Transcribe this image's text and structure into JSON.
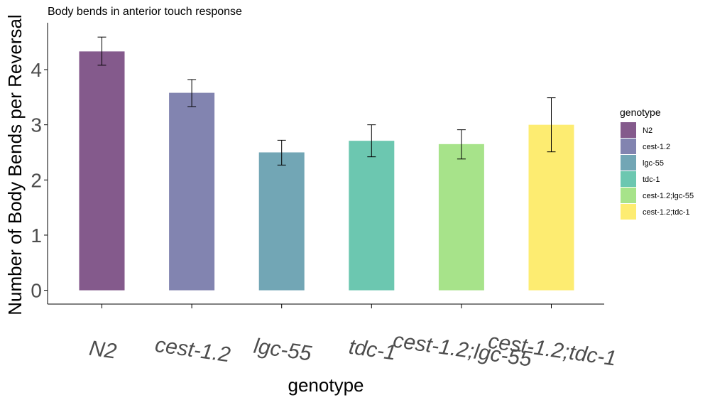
{
  "chart_data": {
    "type": "bar",
    "title": "Body bends in anterior touch response",
    "xlabel": "genotype",
    "ylabel": "Number of Body Bends per Reversal",
    "categories": [
      "N2",
      "cest-1.2",
      "lgc-55",
      "tdc-1",
      "cest-1.2;lgc-55",
      "cest-1.2;tdc-1"
    ],
    "values": [
      4.33,
      3.58,
      2.5,
      2.71,
      2.65,
      3.0
    ],
    "error_low": [
      4.08,
      3.33,
      2.27,
      2.42,
      2.38,
      2.51
    ],
    "error_high": [
      4.59,
      3.82,
      2.72,
      3.0,
      2.91,
      3.49
    ],
    "colors": [
      "#845a8c",
      "#8284b0",
      "#72a6b5",
      "#6cc7b0",
      "#a7e38a",
      "#fdec71"
    ],
    "ylim": [
      -0.25,
      4.85
    ],
    "yticks": [
      0,
      1,
      2,
      3,
      4
    ],
    "legend": {
      "title": "genotype",
      "position": "right",
      "entries": [
        "N2",
        "cest-1.2",
        "lgc-55",
        "tdc-1",
        "cest-1.2;lgc-55",
        "cest-1.2;tdc-1"
      ]
    },
    "grid": false
  }
}
